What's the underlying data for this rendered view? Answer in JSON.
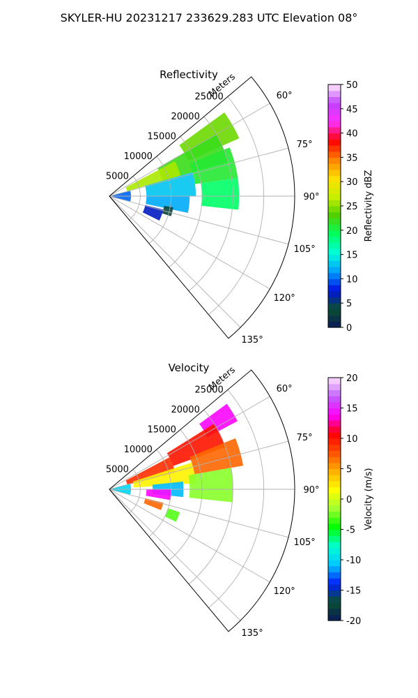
{
  "figure": {
    "suptitle": "SKYLER-HU  20231217  233629.283 UTC Elevation 08°"
  },
  "colors": {
    "reflectivity_stops": [
      "#0a1a5a",
      "#0a5030",
      "#0010e0",
      "#00a0ff",
      "#00ffd8",
      "#00ff60",
      "#50d000",
      "#c8f000",
      "#ffe000",
      "#ff8000",
      "#ff0000",
      "#ff30ff",
      "#c040ff",
      "#ffe8ff"
    ],
    "velocity_stops": [
      "#0a1a5a",
      "#0a5030",
      "#0020ff",
      "#00c8ff",
      "#00ffd0",
      "#00ff00",
      "#a0ff30",
      "#ffff00",
      "#ffb000",
      "#ff5000",
      "#ff0000",
      "#ff00ff",
      "#c060ff",
      "#ffe0ff"
    ]
  },
  "chart_data": [
    {
      "type": "heatmap",
      "subtype": "polar-ppi",
      "title": "Reflectivity",
      "radial_label": "Meters",
      "radial_ticks": [
        5000,
        10000,
        15000,
        20000,
        25000
      ],
      "radial_range": [
        0,
        30000
      ],
      "azimuth_ticks": [
        60,
        75,
        90,
        105,
        120,
        135
      ],
      "azimuth_range": [
        50,
        140
      ],
      "grid": true,
      "colorbar": {
        "label": "Reflectivity dBZ",
        "range": [
          0,
          50
        ],
        "ticks": [
          0,
          5,
          10,
          15,
          20,
          25,
          30,
          35,
          40,
          45,
          50
        ]
      },
      "echo_regions": [
        {
          "az": [
            54,
            66
          ],
          "r": [
            14000,
            23000
          ],
          "value": 24
        },
        {
          "az": [
            60,
            74
          ],
          "r": [
            9000,
            20000
          ],
          "value": 22
        },
        {
          "az": [
            68,
            82
          ],
          "r": [
            14000,
            21000
          ],
          "value": 21
        },
        {
          "az": [
            62,
            74
          ],
          "r": [
            3000,
            12000
          ],
          "value": 26
        },
        {
          "az": [
            74,
            90
          ],
          "r": [
            6000,
            14000
          ],
          "value": 13
        },
        {
          "az": [
            90,
            102
          ],
          "r": [
            6000,
            13000
          ],
          "value": 12
        },
        {
          "az": [
            82,
            96
          ],
          "r": [
            15000,
            21000
          ],
          "value": 19
        },
        {
          "az": [
            76,
            104
          ],
          "r": [
            500,
            3500
          ],
          "value": 10
        },
        {
          "az": [
            104,
            116
          ],
          "r": [
            6000,
            9000
          ],
          "value": 7
        },
        {
          "az": [
            100,
            108
          ],
          "r": [
            9000,
            10500
          ],
          "value": 3
        }
      ]
    },
    {
      "type": "heatmap",
      "subtype": "polar-ppi",
      "title": "Velocity",
      "radial_label": "Meters",
      "radial_ticks": [
        5000,
        10000,
        15000,
        20000,
        25000
      ],
      "radial_range": [
        0,
        30000
      ],
      "azimuth_ticks": [
        60,
        75,
        90,
        105,
        120,
        135
      ],
      "azimuth_range": [
        50,
        140
      ],
      "grid": true,
      "colorbar": {
        "label": "Velocity (m/s)",
        "range": [
          -20,
          20
        ],
        "ticks": [
          -20,
          -15,
          -10,
          -5,
          0,
          5,
          10,
          15,
          20
        ]
      },
      "echo_regions": [
        {
          "az": [
            54,
            62
          ],
          "r": [
            18000,
            23500
          ],
          "value": 14
        },
        {
          "az": [
            58,
            70
          ],
          "r": [
            11000,
            20000
          ],
          "value": 10
        },
        {
          "az": [
            68,
            80
          ],
          "r": [
            14000,
            22000
          ],
          "value": 7
        },
        {
          "az": [
            62,
            76
          ],
          "r": [
            3000,
            11000
          ],
          "value": 9
        },
        {
          "az": [
            72,
            86
          ],
          "r": [
            4000,
            14000
          ],
          "value": 2
        },
        {
          "az": [
            80,
            96
          ],
          "r": [
            13000,
            20000
          ],
          "value": -2
        },
        {
          "az": [
            84,
            96
          ],
          "r": [
            7000,
            12000
          ],
          "value": -11
        },
        {
          "az": [
            90,
            100
          ],
          "r": [
            6000,
            10000
          ],
          "value": 14
        },
        {
          "az": [
            76,
            104
          ],
          "r": [
            500,
            3500
          ],
          "value": -10
        },
        {
          "az": [
            104,
            112
          ],
          "r": [
            6000,
            9000
          ],
          "value": 7
        },
        {
          "az": [
            108,
            116
          ],
          "r": [
            10000,
            12000
          ],
          "value": -3
        }
      ]
    }
  ]
}
